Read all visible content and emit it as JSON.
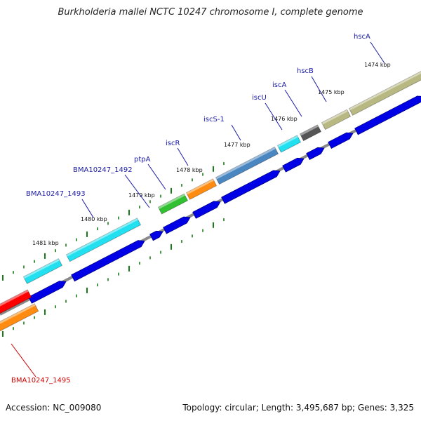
{
  "title": "Burkholderia mallei NCTC 10247 chromosome I, complete genome",
  "footer": {
    "accession": "Accession: NC_009080",
    "summary": "Topology: circular; Length: 3,495,687 bp; Genes: 3,325"
  },
  "colors": {
    "label_default": "#1a1aa6",
    "label_highlight": "#cc0000",
    "backbone": "#8a8a8a",
    "cds": "#0000e6",
    "tick": "#1a7a1a"
  },
  "kbp_marks": [
    "1474 kbp",
    "1475 kbp",
    "1476 kbp",
    "1477 kbp",
    "1478 kbp",
    "1479 kbp",
    "1480 kbp",
    "1481 kbp"
  ],
  "genes": [
    {
      "name": "hscA",
      "color": "#b8b882"
    },
    {
      "name": "hscB",
      "color": "#b8b882"
    },
    {
      "name": "iscA",
      "color": "#555555"
    },
    {
      "name": "iscU",
      "color": "#22e0f0"
    },
    {
      "name": "iscS-1",
      "color": "#4a86c0"
    },
    {
      "name": "iscR",
      "color": "#ff8c10"
    },
    {
      "name": "ptpA",
      "color": "#30c030"
    },
    {
      "name": "BMA10247_1492",
      "color": "#22e0f0"
    },
    {
      "name": "BMA10247_1493",
      "color": "#22e0f0"
    },
    {
      "name": "BMA10247_1495",
      "color": "#ff8c10"
    },
    {
      "name": "",
      "color": "#ff0000"
    }
  ]
}
